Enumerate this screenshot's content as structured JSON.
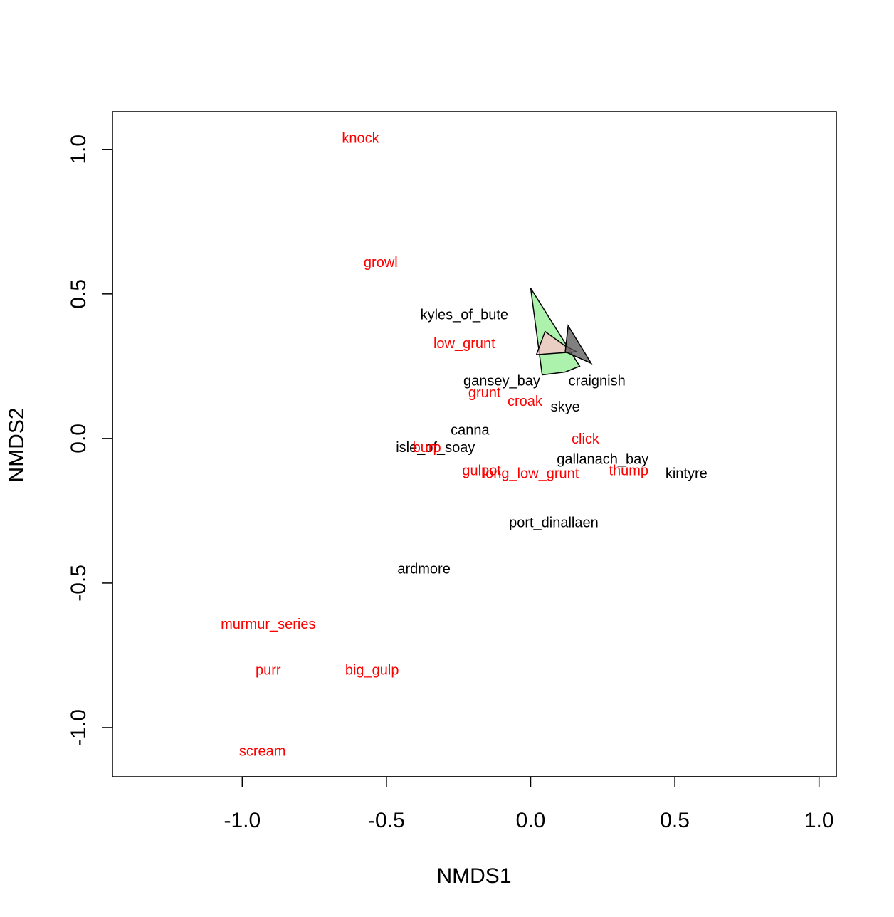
{
  "chart_data": {
    "type": "scatter",
    "title": "",
    "xlabel": "NMDS1",
    "ylabel": "NMDS2",
    "xlim": [
      -1.45,
      1.06
    ],
    "ylim": [
      -1.17,
      1.13
    ],
    "x_ticks": [
      -1.0,
      -0.5,
      0.0,
      0.5,
      1.0
    ],
    "x_tick_labels": [
      "-1.0",
      "-0.5",
      "0.0",
      "0.5",
      "1.0"
    ],
    "y_ticks": [
      -1.0,
      -0.5,
      0.0,
      0.5,
      1.0
    ],
    "y_tick_labels": [
      "-1.0",
      "-0.5",
      "0.0",
      "0.5",
      "1.0"
    ],
    "grid": false,
    "series": [
      {
        "role": "sites",
        "color": "#000000",
        "points": [
          {
            "label": "kyles_of_bute",
            "x": -0.23,
            "y": 0.43
          },
          {
            "label": "gansey_bay",
            "x": -0.1,
            "y": 0.2
          },
          {
            "label": "craignish",
            "x": 0.23,
            "y": 0.2
          },
          {
            "label": "skye",
            "x": 0.12,
            "y": 0.11
          },
          {
            "label": "canna",
            "x": -0.21,
            "y": 0.03
          },
          {
            "label": "isle_of_soay",
            "x": -0.33,
            "y": -0.03
          },
          {
            "label": "gallanach_bay",
            "x": 0.25,
            "y": -0.07
          },
          {
            "label": "kintyre",
            "x": 0.54,
            "y": -0.12
          },
          {
            "label": "port_dinallaen",
            "x": 0.08,
            "y": -0.29
          },
          {
            "label": "ardmore",
            "x": -0.37,
            "y": -0.45
          }
        ]
      },
      {
        "role": "species",
        "color": "#ff0000",
        "points": [
          {
            "label": "knock",
            "x": -0.59,
            "y": 1.04
          },
          {
            "label": "growl",
            "x": -0.52,
            "y": 0.61
          },
          {
            "label": "low_grunt",
            "x": -0.23,
            "y": 0.33
          },
          {
            "label": "grunt",
            "x": -0.16,
            "y": 0.16
          },
          {
            "label": "croak",
            "x": -0.02,
            "y": 0.13
          },
          {
            "label": "click",
            "x": 0.19,
            "y": 0.0
          },
          {
            "label": "burp",
            "x": -0.36,
            "y": -0.03
          },
          {
            "label": "gulpot",
            "x": -0.17,
            "y": -0.11
          },
          {
            "label": "long_low_grunt",
            "x": 0.0,
            "y": -0.12
          },
          {
            "label": "thump",
            "x": 0.34,
            "y": -0.11
          },
          {
            "label": "murmur_series",
            "x": -0.91,
            "y": -0.64
          },
          {
            "label": "purr",
            "x": -0.91,
            "y": -0.8
          },
          {
            "label": "big_gulp",
            "x": -0.55,
            "y": -0.8
          },
          {
            "label": "scream",
            "x": -0.93,
            "y": -1.08
          }
        ]
      }
    ],
    "hulls": [
      {
        "color": "#90ee90",
        "opacity": 0.75,
        "points": [
          [
            0.0,
            0.52
          ],
          [
            0.17,
            0.25
          ],
          [
            0.12,
            0.23
          ],
          [
            0.04,
            0.22
          ]
        ]
      },
      {
        "color": "#ffc0cb",
        "opacity": 0.75,
        "points": [
          [
            0.05,
            0.37
          ],
          [
            0.12,
            0.32
          ],
          [
            0.16,
            0.3
          ],
          [
            0.02,
            0.29
          ]
        ]
      },
      {
        "color": "#555555",
        "opacity": 0.75,
        "points": [
          [
            0.13,
            0.39
          ],
          [
            0.21,
            0.26
          ],
          [
            0.12,
            0.3
          ]
        ]
      }
    ]
  }
}
